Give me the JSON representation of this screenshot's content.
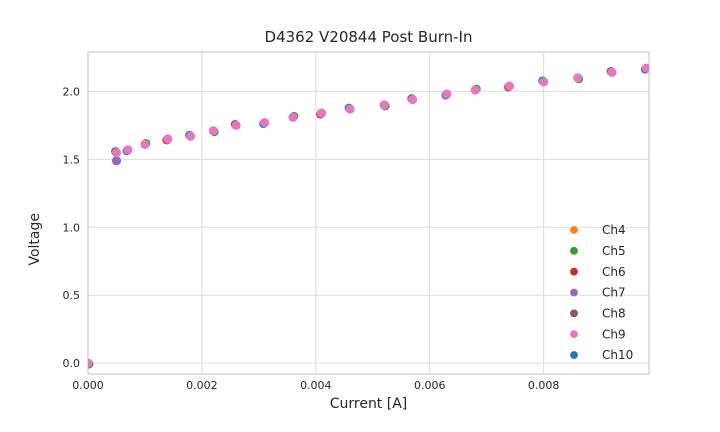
{
  "figure": {
    "title": "D4362 V20844 Post Burn-In",
    "xlabel": "Current [A]",
    "ylabel": "Voltage"
  },
  "theme": {
    "background": "#ffffff",
    "grid_color": "#dcdcdc",
    "spine_color": "#cccccc",
    "text_color": "#262626",
    "marker_top_color": "#e377c2"
  },
  "axes": {
    "xticks": {
      "values": [
        0,
        0.002,
        0.004,
        0.006,
        0.008
      ],
      "labels": [
        "0.000",
        "0.002",
        "0.004",
        "0.006",
        "0.008"
      ]
    },
    "yticks": {
      "values": [
        0.0,
        0.5,
        1.0,
        1.5,
        2.0
      ],
      "labels": [
        "0.0",
        "0.5",
        "1.0",
        "1.5",
        "2.0"
      ]
    }
  },
  "legend": {
    "items": [
      {
        "label": "Ch4",
        "color": "#ff7f0e"
      },
      {
        "label": "Ch5",
        "color": "#2ca02c"
      },
      {
        "label": "Ch6",
        "color": "#d62728"
      },
      {
        "label": "Ch7",
        "color": "#9467bd"
      },
      {
        "label": "Ch8",
        "color": "#8c564b"
      },
      {
        "label": "Ch9",
        "color": "#e377c2"
      },
      {
        "label": "Ch10",
        "color": "#1f77b4"
      }
    ]
  },
  "chart_data": {
    "type": "scatter",
    "title": "D4362 V20844 Post Burn-In",
    "xlabel": "Current [A]",
    "ylabel": "Voltage",
    "xlim": [
      0,
      0.00985
    ],
    "ylim": [
      -0.08,
      2.29
    ],
    "grid": true,
    "legend_position": "lower right",
    "x": [
      0.0,
      0.0005,
      0.0007,
      0.001,
      0.0014,
      0.0018,
      0.0022,
      0.0026,
      0.0031,
      0.0036,
      0.0041,
      0.0046,
      0.0052,
      0.0057,
      0.0063,
      0.0068,
      0.0074,
      0.008,
      0.0086,
      0.0092,
      0.0098
    ],
    "voltage_common": [
      0.0,
      1.55,
      1.57,
      1.61,
      1.65,
      1.67,
      1.71,
      1.75,
      1.77,
      1.81,
      1.84,
      1.87,
      1.9,
      1.94,
      1.98,
      2.01,
      2.04,
      2.07,
      2.1,
      2.14,
      2.17
    ],
    "series": [
      {
        "name": "Ch4",
        "color": "#ff7f0e",
        "overlaps_common_curve": true
      },
      {
        "name": "Ch5",
        "color": "#2ca02c",
        "overlaps_common_curve": true
      },
      {
        "name": "Ch6",
        "color": "#d62728",
        "overlaps_common_curve": true
      },
      {
        "name": "Ch7",
        "color": "#9467bd",
        "overlaps_common_curve": true,
        "deviations": [
          {
            "x": 0.0005,
            "y": 1.49
          }
        ]
      },
      {
        "name": "Ch8",
        "color": "#8c564b",
        "overlaps_common_curve": true
      },
      {
        "name": "Ch9",
        "color": "#e377c2",
        "overlaps_common_curve": true
      },
      {
        "name": "Ch10",
        "color": "#1f77b4",
        "overlaps_common_curve": true
      }
    ]
  }
}
